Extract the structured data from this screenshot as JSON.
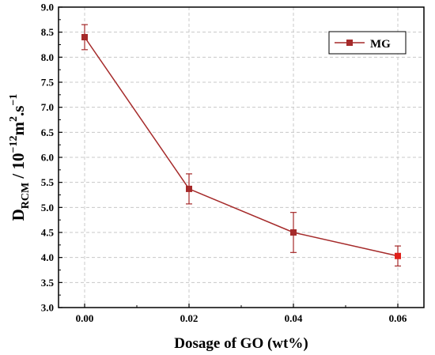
{
  "chart_data": {
    "type": "line",
    "x": [
      0.0,
      0.02,
      0.04,
      0.06
    ],
    "x_tick_labels": [
      "0.00",
      "0.02",
      "0.04",
      "0.06"
    ],
    "y_tick_labels": [
      "3.0",
      "3.5",
      "4.0",
      "4.5",
      "5.0",
      "5.5",
      "6.0",
      "6.5",
      "7.0",
      "7.5",
      "8.0",
      "8.5",
      "9.0"
    ],
    "series": [
      {
        "name": "MG",
        "values": [
          8.4,
          5.37,
          4.5,
          4.03
        ],
        "error": [
          0.25,
          0.3,
          0.4,
          0.2
        ],
        "color": "#a52a2a",
        "marker": "square"
      }
    ],
    "xlabel": "Dosage of GO (wt%)",
    "ylabel": {
      "base": "D",
      "base_subscript": "RCM",
      "separator": " / 10",
      "exp1": "−12",
      "mid": "m",
      "exp2": "2",
      "mid2": ".s",
      "exp3": "−1"
    },
    "xlim": [
      -0.005,
      0.065
    ],
    "ylim": [
      3.0,
      9.0
    ],
    "grid": true,
    "legend_position": "top-right"
  }
}
